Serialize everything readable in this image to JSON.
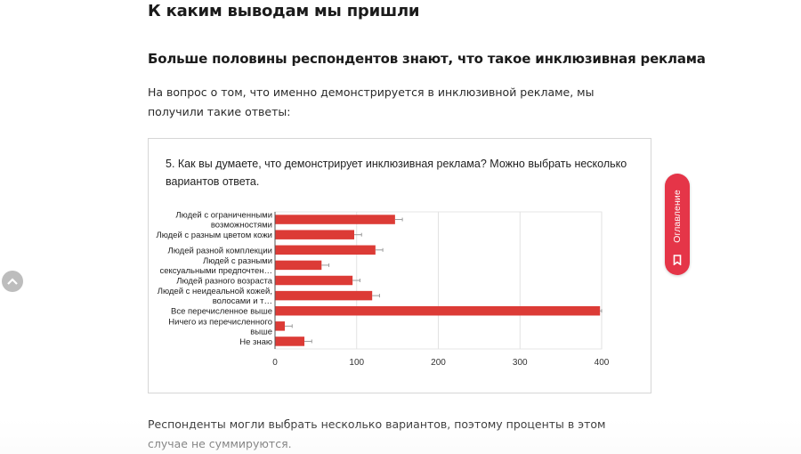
{
  "article": {
    "heading": "К каким выводам мы пришли",
    "subheading": "Больше половины респондентов знают, что такое инклюзивная реклама",
    "intro": "На вопрос о том, что именно демонстрируется в инклюзивной рекламе, мы получили такие ответы:",
    "note": "Респонденты могли выбрать несколько вариантов, поэтому проценты в этом случае не суммируются."
  },
  "chart": {
    "question": "5. Как вы думаете, что демонстрирует инклюзивная реклама? Можно выбрать несколько вариантов ответа."
  },
  "chart_data": {
    "type": "bar",
    "orientation": "horizontal",
    "categories": [
      [
        "Людей с ограниченными",
        "возможностями"
      ],
      [
        "Людей с разным цветом кожи"
      ],
      [
        "Людей разной комплекции"
      ],
      [
        "Людей с разными",
        "сексуальными предпочтен…"
      ],
      [
        "Людей разного возраста"
      ],
      [
        "Людей с неидеальной кожей,",
        "волосами и т…"
      ],
      [
        "Все перечисленное выше"
      ],
      [
        "Ничего из перечисленного",
        "выше"
      ],
      [
        "Не знаю"
      ]
    ],
    "values": [
      147,
      97,
      123,
      57,
      95,
      119,
      398,
      12,
      36
    ],
    "xlim": [
      0,
      400
    ],
    "xticks": [
      0,
      100,
      200,
      300,
      400
    ],
    "xtick_labels": [
      "0",
      "100",
      "200",
      "300",
      "400"
    ],
    "bar_color": "#dc3b36",
    "grid": true,
    "error_whiskers": true
  },
  "toc": {
    "label": "Оглавление",
    "color": "#e53548"
  },
  "icons": {
    "scroll_top": "chevron-up-icon",
    "toc": "bookmark-icon"
  }
}
